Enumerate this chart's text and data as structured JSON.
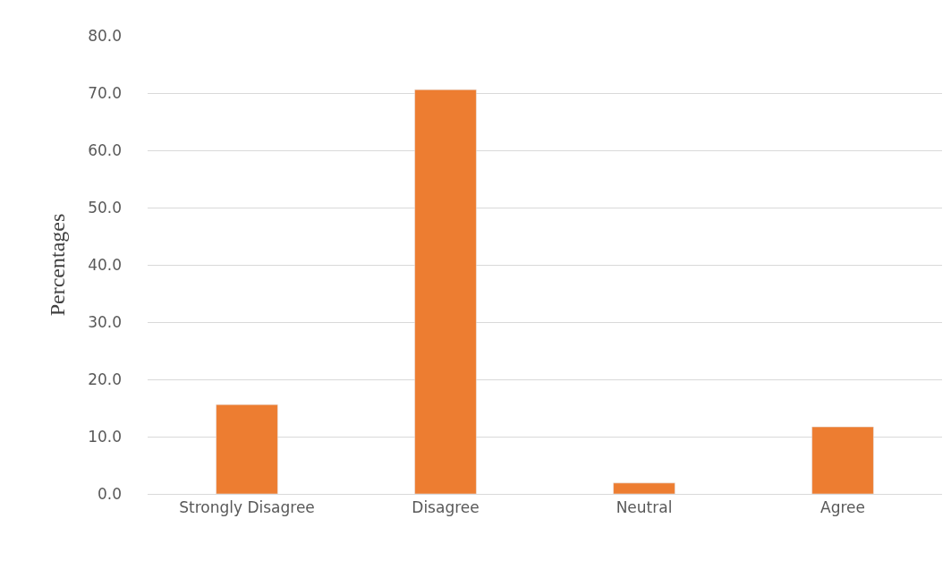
{
  "chart_data": {
    "type": "bar",
    "ylabel": "Percentages",
    "categories": [
      "Strongly Disagree",
      "Disagree",
      "Neutral",
      "Agree"
    ],
    "values": [
      15.6,
      70.6,
      1.9,
      11.7
    ],
    "color": "#ed7d31",
    "ylim": [
      0,
      80
    ],
    "yticks": [
      {
        "value": 0,
        "label": "0.0"
      },
      {
        "value": 10,
        "label": "10.0"
      },
      {
        "value": 20,
        "label": "20.0"
      },
      {
        "value": 30,
        "label": "30.0"
      },
      {
        "value": 40,
        "label": "40.0"
      },
      {
        "value": 50,
        "label": "50.0"
      },
      {
        "value": 60,
        "label": "60.0"
      },
      {
        "value": 70,
        "label": "70.0"
      },
      {
        "value": 80,
        "label": "80.0"
      }
    ],
    "grid": "y",
    "legend": false
  }
}
